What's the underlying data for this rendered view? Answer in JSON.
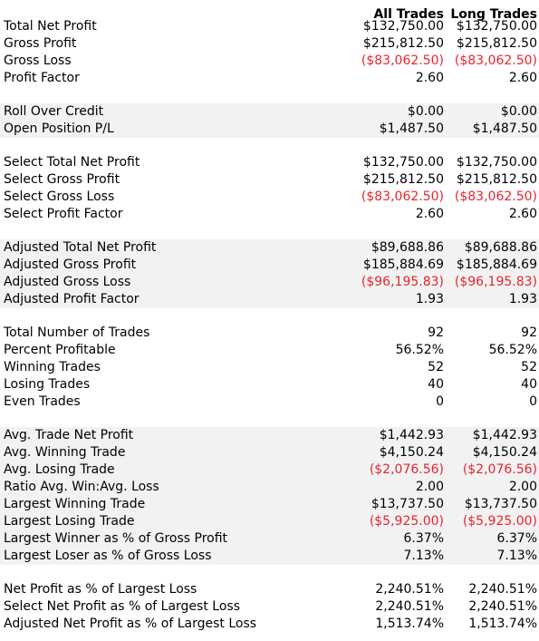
{
  "columns": [
    "All Trades",
    "Long Trades"
  ],
  "groups": [
    {
      "shaded": false,
      "rows": [
        {
          "label": "Total Net Profit",
          "all": "$132,750.00",
          "long": "$132,750.00",
          "negative": false
        },
        {
          "label": "Gross Profit",
          "all": "$215,812.50",
          "long": "$215,812.50",
          "negative": false
        },
        {
          "label": "Gross Loss",
          "all": "($83,062.50)",
          "long": "($83,062.50)",
          "negative": true
        },
        {
          "label": "Profit Factor",
          "all": "2.60",
          "long": "2.60",
          "negative": false
        }
      ]
    },
    {
      "shaded": true,
      "rows": [
        {
          "label": "Roll Over Credit",
          "all": "$0.00",
          "long": "$0.00",
          "negative": false
        },
        {
          "label": "Open Position P/L",
          "all": "$1,487.50",
          "long": "$1,487.50",
          "negative": false
        }
      ]
    },
    {
      "shaded": false,
      "rows": [
        {
          "label": "Select Total Net Profit",
          "all": "$132,750.00",
          "long": "$132,750.00",
          "negative": false
        },
        {
          "label": "Select Gross Profit",
          "all": "$215,812.50",
          "long": "$215,812.50",
          "negative": false
        },
        {
          "label": "Select Gross Loss",
          "all": "($83,062.50)",
          "long": "($83,062.50)",
          "negative": true
        },
        {
          "label": "Select Profit Factor",
          "all": "2.60",
          "long": "2.60",
          "negative": false
        }
      ]
    },
    {
      "shaded": true,
      "rows": [
        {
          "label": "Adjusted Total Net Profit",
          "all": "$89,688.86",
          "long": "$89,688.86",
          "negative": false
        },
        {
          "label": "Adjusted Gross Profit",
          "all": "$185,884.69",
          "long": "$185,884.69",
          "negative": false
        },
        {
          "label": "Adjusted Gross Loss",
          "all": "($96,195.83)",
          "long": "($96,195.83)",
          "negative": true
        },
        {
          "label": "Adjusted Profit Factor",
          "all": "1.93",
          "long": "1.93",
          "negative": false
        }
      ]
    },
    {
      "shaded": false,
      "rows": [
        {
          "label": "Total Number of Trades",
          "all": "92",
          "long": "92",
          "negative": false
        },
        {
          "label": "Percent Profitable",
          "all": "56.52%",
          "long": "56.52%",
          "negative": false
        },
        {
          "label": "Winning Trades",
          "all": "52",
          "long": "52",
          "negative": false
        },
        {
          "label": "Losing Trades",
          "all": "40",
          "long": "40",
          "negative": false
        },
        {
          "label": "Even Trades",
          "all": "0",
          "long": "0",
          "negative": false
        }
      ]
    },
    {
      "shaded": true,
      "rows": [
        {
          "label": "Avg. Trade Net Profit",
          "all": "$1,442.93",
          "long": "$1,442.93",
          "negative": false
        },
        {
          "label": "Avg. Winning Trade",
          "all": "$4,150.24",
          "long": "$4,150.24",
          "negative": false
        },
        {
          "label": "Avg. Losing Trade",
          "all": "($2,076.56)",
          "long": "($2,076.56)",
          "negative": true
        },
        {
          "label": "Ratio Avg. Win:Avg. Loss",
          "all": "2.00",
          "long": "2.00",
          "negative": false
        },
        {
          "label": "Largest Winning Trade",
          "all": "$13,737.50",
          "long": "$13,737.50",
          "negative": false
        },
        {
          "label": "Largest Losing Trade",
          "all": "($5,925.00)",
          "long": "($5,925.00)",
          "negative": true
        },
        {
          "label": "Largest Winner as % of Gross Profit",
          "all": "6.37%",
          "long": "6.37%",
          "negative": false
        },
        {
          "label": "Largest Loser as % of Gross Loss",
          "all": "7.13%",
          "long": "7.13%",
          "negative": false
        }
      ]
    },
    {
      "shaded": false,
      "rows": [
        {
          "label": "Net Profit as % of Largest Loss",
          "all": "2,240.51%",
          "long": "2,240.51%",
          "negative": false
        },
        {
          "label": "Select Net Profit as % of Largest Loss",
          "all": "2,240.51%",
          "long": "2,240.51%",
          "negative": false
        },
        {
          "label": "Adjusted Net Profit as % of Largest Loss",
          "all": "1,513.74%",
          "long": "1,513.74%",
          "negative": false
        }
      ]
    }
  ],
  "colors": {
    "negative": "#e8242c",
    "shade": "#f2f2f2"
  }
}
